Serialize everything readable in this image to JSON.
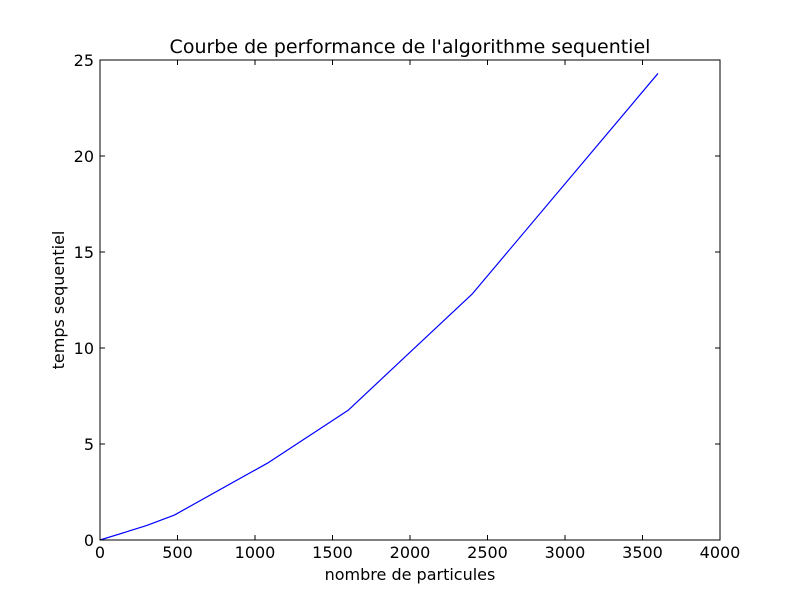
{
  "chart_data": {
    "type": "line",
    "title": "Courbe de performance de l'algorithme sequentiel",
    "xlabel": "nombre de particules",
    "ylabel": "temps sequentiel",
    "xlim": [
      0,
      4000
    ],
    "ylim": [
      0,
      25
    ],
    "x_ticks": [
      0,
      500,
      1000,
      1500,
      2000,
      2500,
      3000,
      3500,
      4000
    ],
    "x_tick_labels": [
      "0",
      "500",
      "1000",
      "1500",
      "2000",
      "2500",
      "3000",
      "3500",
      "4000"
    ],
    "y_ticks": [
      0,
      5,
      10,
      15,
      20,
      25
    ],
    "y_tick_labels": [
      "0",
      "5",
      "10",
      "15",
      "20",
      "25"
    ],
    "grid": false,
    "series": [
      {
        "color": "#0000ff",
        "x": [
          0,
          300,
          480,
          1080,
          1600,
          2400,
          3600
        ],
        "y": [
          0,
          0.75,
          1.3,
          4.0,
          6.75,
          12.8,
          24.3
        ]
      }
    ]
  }
}
